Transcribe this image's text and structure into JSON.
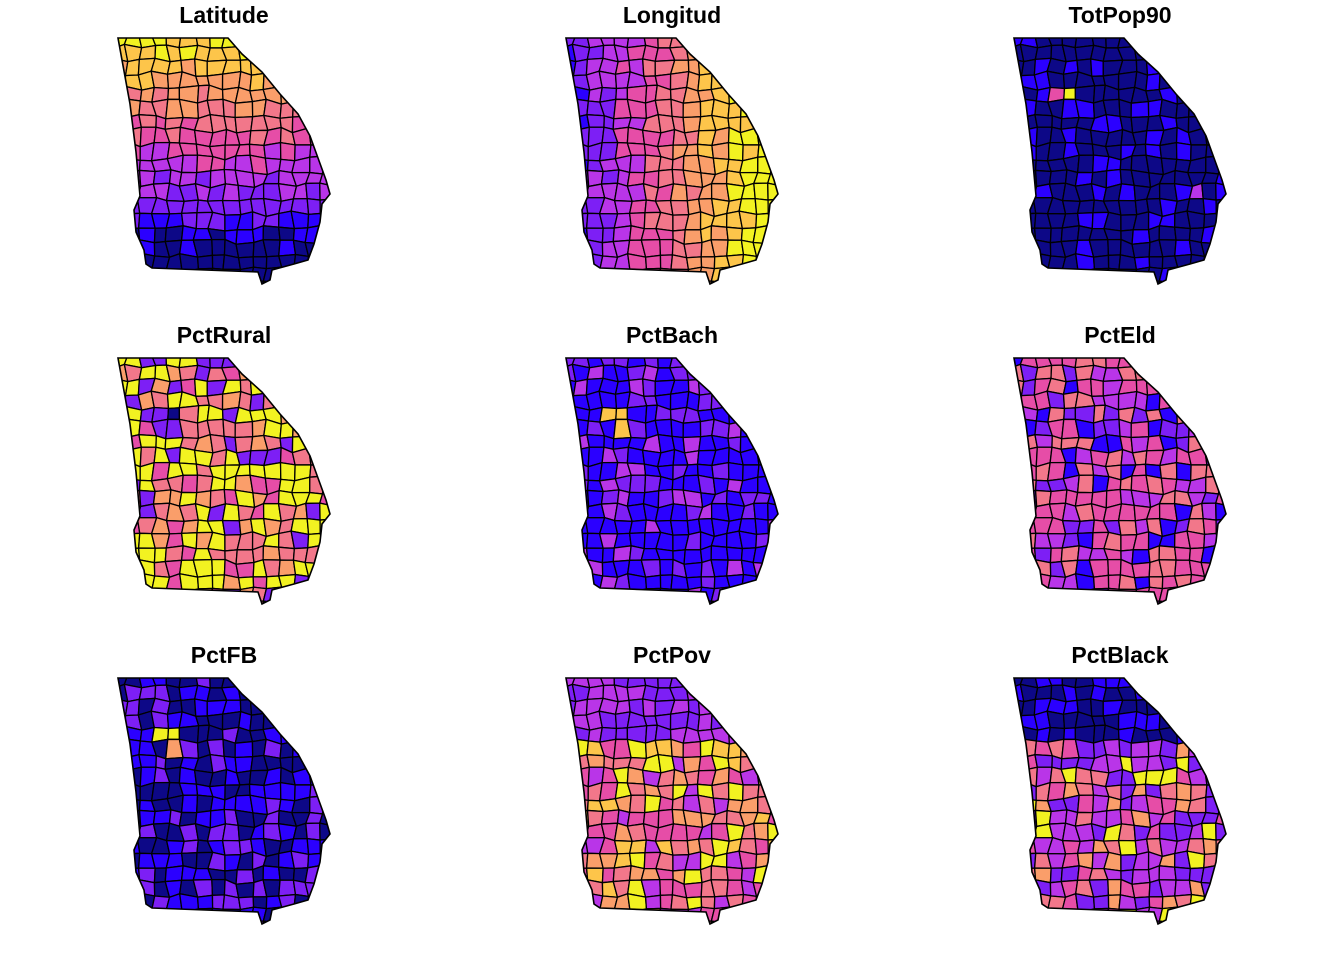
{
  "palette": [
    "#0d0887",
    "#2b00ff",
    "#7d1ff5",
    "#b935e8",
    "#e64da7",
    "#f2778a",
    "#fa9e6a",
    "#fdc54a",
    "#f2f221"
  ],
  "panels": [
    {
      "title": "Latitude",
      "pattern": "lat"
    },
    {
      "title": "Longitud",
      "pattern": "lon"
    },
    {
      "title": "TotPop90",
      "pattern": "pop"
    },
    {
      "title": "PctRural",
      "pattern": "rural"
    },
    {
      "title": "PctBach",
      "pattern": "bach"
    },
    {
      "title": "PctEld",
      "pattern": "eld"
    },
    {
      "title": "PctFB",
      "pattern": "fb"
    },
    {
      "title": "PctPov",
      "pattern": "pov"
    },
    {
      "title": "PctBlack",
      "pattern": "black"
    }
  ]
}
